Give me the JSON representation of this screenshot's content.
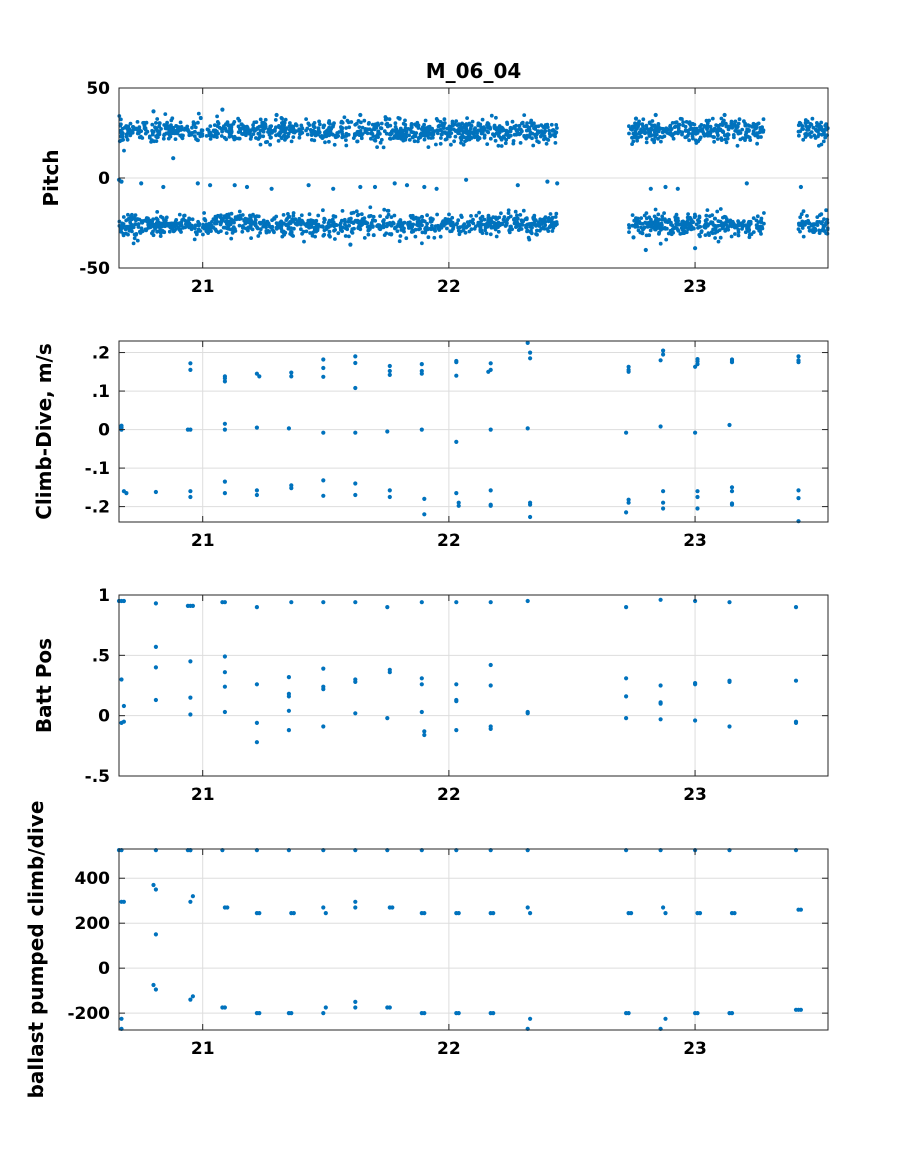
{
  "figure": {
    "title": "M_06_04",
    "marker_color": "#0072BD",
    "grid_color": "#dddddd"
  },
  "chart_data": [
    {
      "type": "scatter",
      "title": "M_06_04",
      "xlabel": "",
      "ylabel": "Pitch",
      "xlim": [
        20.66,
        23.54
      ],
      "ylim": [
        -50,
        50
      ],
      "xticks": [
        21,
        22,
        23
      ],
      "yticks": [
        -50,
        0,
        50
      ],
      "grid": true,
      "dense_bands": [
        {
          "center": 26,
          "spread": 5,
          "segments": [
            [
              20.66,
              22.44
            ],
            [
              22.73,
              23.28
            ],
            [
              23.42,
              23.54
            ]
          ]
        },
        {
          "center": -26,
          "spread": 5,
          "segments": [
            [
              20.66,
              22.44
            ],
            [
              22.73,
              23.28
            ],
            [
              23.42,
              23.54
            ]
          ]
        }
      ],
      "points": [
        [
          20.66,
          -1
        ],
        [
          20.67,
          -2
        ],
        [
          20.75,
          -3
        ],
        [
          20.84,
          -5
        ],
        [
          20.98,
          -3
        ],
        [
          21.03,
          -4
        ],
        [
          21.08,
          38
        ],
        [
          21.13,
          -4
        ],
        [
          21.18,
          -5
        ],
        [
          21.28,
          -6
        ],
        [
          21.43,
          -4
        ],
        [
          21.53,
          -6
        ],
        [
          21.64,
          -5
        ],
        [
          21.64,
          35
        ],
        [
          21.7,
          -5
        ],
        [
          21.78,
          -3
        ],
        [
          21.83,
          -4
        ],
        [
          21.9,
          -5
        ],
        [
          21.95,
          -6
        ],
        [
          22.07,
          -1
        ],
        [
          22.28,
          -4
        ],
        [
          22.4,
          -2
        ],
        [
          22.44,
          -3
        ],
        [
          20.8,
          37
        ],
        [
          20.88,
          11
        ],
        [
          21.6,
          -37
        ],
        [
          22.75,
          -33
        ],
        [
          22.8,
          -40
        ],
        [
          22.82,
          -6
        ],
        [
          22.88,
          -5
        ],
        [
          22.93,
          -6
        ],
        [
          23.0,
          -39
        ],
        [
          23.21,
          -3
        ],
        [
          23.43,
          -5
        ],
        [
          22.76,
          33
        ],
        [
          22.84,
          35
        ],
        [
          23.12,
          35
        ],
        [
          21.3,
          35
        ],
        [
          21.8,
          33
        ]
      ]
    },
    {
      "type": "scatter",
      "xlabel": "",
      "ylabel": "Climb-Dive, m/s",
      "xlim": [
        20.66,
        23.54
      ],
      "ylim": [
        -0.24,
        0.23
      ],
      "xticks": [
        21,
        22,
        23
      ],
      "yticks": [
        -0.2,
        -0.1,
        0,
        0.1,
        0.2
      ],
      "grid": true,
      "points": [
        [
          20.67,
          0.01
        ],
        [
          20.67,
          0.0
        ],
        [
          20.67,
          0.005
        ],
        [
          20.68,
          -0.16
        ],
        [
          20.69,
          -0.165
        ],
        [
          20.81,
          -0.162
        ],
        [
          20.94,
          0.0
        ],
        [
          20.95,
          0.0
        ],
        [
          20.95,
          0.155
        ],
        [
          20.95,
          0.172
        ],
        [
          20.95,
          -0.16
        ],
        [
          20.95,
          -0.175
        ],
        [
          21.09,
          0.133
        ],
        [
          21.09,
          0.138
        ],
        [
          21.09,
          0.125
        ],
        [
          21.09,
          0.015
        ],
        [
          21.09,
          0.0
        ],
        [
          21.09,
          -0.135
        ],
        [
          21.09,
          -0.165
        ],
        [
          21.22,
          0.145
        ],
        [
          21.23,
          0.138
        ],
        [
          21.22,
          0.005
        ],
        [
          21.22,
          -0.158
        ],
        [
          21.22,
          -0.17
        ],
        [
          21.36,
          0.148
        ],
        [
          21.36,
          0.138
        ],
        [
          21.35,
          0.003
        ],
        [
          21.36,
          -0.145
        ],
        [
          21.36,
          -0.152
        ],
        [
          21.49,
          0.182
        ],
        [
          21.49,
          0.16
        ],
        [
          21.49,
          0.137
        ],
        [
          21.49,
          -0.008
        ],
        [
          21.49,
          -0.132
        ],
        [
          21.49,
          -0.172
        ],
        [
          21.62,
          0.19
        ],
        [
          21.62,
          0.173
        ],
        [
          21.62,
          0.108
        ],
        [
          21.62,
          -0.008
        ],
        [
          21.62,
          -0.14
        ],
        [
          21.62,
          -0.17
        ],
        [
          21.76,
          0.165
        ],
        [
          21.76,
          0.152
        ],
        [
          21.76,
          0.142
        ],
        [
          21.75,
          -0.005
        ],
        [
          21.76,
          -0.158
        ],
        [
          21.76,
          -0.175
        ],
        [
          21.89,
          0.17
        ],
        [
          21.89,
          0.152
        ],
        [
          21.89,
          0.145
        ],
        [
          21.89,
          0.0
        ],
        [
          21.9,
          -0.18
        ],
        [
          21.9,
          -0.22
        ],
        [
          22.03,
          0.178
        ],
        [
          22.03,
          0.175
        ],
        [
          22.03,
          0.14
        ],
        [
          22.03,
          -0.032
        ],
        [
          22.03,
          -0.165
        ],
        [
          22.04,
          -0.19
        ],
        [
          22.04,
          -0.198
        ],
        [
          22.17,
          0.172
        ],
        [
          22.17,
          0.155
        ],
        [
          22.16,
          0.15
        ],
        [
          22.17,
          0.0
        ],
        [
          22.17,
          -0.158
        ],
        [
          22.17,
          -0.195
        ],
        [
          22.17,
          -0.198
        ],
        [
          22.32,
          0.225
        ],
        [
          22.33,
          0.2
        ],
        [
          22.33,
          0.185
        ],
        [
          22.32,
          0.003
        ],
        [
          22.33,
          -0.19
        ],
        [
          22.33,
          -0.195
        ],
        [
          22.33,
          -0.227
        ],
        [
          22.73,
          0.163
        ],
        [
          22.73,
          0.155
        ],
        [
          22.73,
          0.15
        ],
        [
          22.72,
          -0.008
        ],
        [
          22.73,
          -0.182
        ],
        [
          22.73,
          -0.19
        ],
        [
          22.72,
          -0.215
        ],
        [
          22.87,
          0.205
        ],
        [
          22.87,
          0.195
        ],
        [
          22.86,
          0.18
        ],
        [
          22.86,
          0.008
        ],
        [
          22.87,
          -0.16
        ],
        [
          22.87,
          -0.19
        ],
        [
          22.87,
          -0.205
        ],
        [
          23.01,
          0.183
        ],
        [
          23.01,
          0.177
        ],
        [
          23.01,
          0.17
        ],
        [
          23.0,
          0.163
        ],
        [
          23.0,
          -0.008
        ],
        [
          23.01,
          -0.16
        ],
        [
          23.01,
          -0.175
        ],
        [
          23.01,
          -0.205
        ],
        [
          23.15,
          0.182
        ],
        [
          23.15,
          0.178
        ],
        [
          23.15,
          0.175
        ],
        [
          23.14,
          0.012
        ],
        [
          23.15,
          -0.15
        ],
        [
          23.15,
          -0.16
        ],
        [
          23.15,
          -0.192
        ],
        [
          23.15,
          -0.195
        ],
        [
          23.42,
          0.19
        ],
        [
          23.42,
          0.18
        ],
        [
          23.42,
          0.175
        ],
        [
          23.42,
          -0.158
        ],
        [
          23.42,
          -0.178
        ],
        [
          23.42,
          -0.238
        ]
      ]
    },
    {
      "type": "scatter",
      "xlabel": "",
      "ylabel": "Batt Pos",
      "xlim": [
        20.66,
        23.54
      ],
      "ylim": [
        -0.5,
        1
      ],
      "xticks": [
        21,
        22,
        23
      ],
      "yticks": [
        -0.5,
        0,
        0.5,
        1
      ],
      "grid": true,
      "points": [
        [
          20.66,
          0.95
        ],
        [
          20.67,
          0.95
        ],
        [
          20.68,
          0.95
        ],
        [
          20.67,
          0.3
        ],
        [
          20.68,
          0.08
        ],
        [
          20.67,
          -0.06
        ],
        [
          20.68,
          -0.05
        ],
        [
          20.81,
          0.93
        ],
        [
          20.81,
          0.57
        ],
        [
          20.81,
          0.4
        ],
        [
          20.81,
          0.13
        ],
        [
          20.94,
          0.91
        ],
        [
          20.95,
          0.91
        ],
        [
          20.96,
          0.91
        ],
        [
          20.95,
          0.45
        ],
        [
          20.95,
          0.15
        ],
        [
          20.95,
          0.01
        ],
        [
          21.08,
          0.94
        ],
        [
          21.09,
          0.94
        ],
        [
          21.09,
          0.49
        ],
        [
          21.09,
          0.36
        ],
        [
          21.09,
          0.24
        ],
        [
          21.09,
          0.03
        ],
        [
          21.22,
          0.9
        ],
        [
          21.22,
          0.26
        ],
        [
          21.22,
          -0.06
        ],
        [
          21.22,
          -0.22
        ],
        [
          21.36,
          0.94
        ],
        [
          21.35,
          0.32
        ],
        [
          21.35,
          0.18
        ],
        [
          21.35,
          0.16
        ],
        [
          21.35,
          0.04
        ],
        [
          21.35,
          -0.12
        ],
        [
          21.49,
          0.94
        ],
        [
          21.49,
          0.39
        ],
        [
          21.49,
          0.24
        ],
        [
          21.49,
          0.22
        ],
        [
          21.49,
          -0.09
        ],
        [
          21.62,
          0.94
        ],
        [
          21.62,
          0.3
        ],
        [
          21.62,
          0.28
        ],
        [
          21.62,
          0.02
        ],
        [
          21.75,
          0.9
        ],
        [
          21.76,
          0.38
        ],
        [
          21.76,
          0.36
        ],
        [
          21.75,
          -0.02
        ],
        [
          21.89,
          0.94
        ],
        [
          21.89,
          0.31
        ],
        [
          21.89,
          0.26
        ],
        [
          21.89,
          0.03
        ],
        [
          21.9,
          -0.13
        ],
        [
          21.9,
          -0.16
        ],
        [
          22.03,
          0.94
        ],
        [
          22.03,
          0.26
        ],
        [
          22.03,
          0.13
        ],
        [
          22.03,
          0.12
        ],
        [
          22.03,
          -0.12
        ],
        [
          22.17,
          0.94
        ],
        [
          22.17,
          0.42
        ],
        [
          22.17,
          0.25
        ],
        [
          22.17,
          -0.09
        ],
        [
          22.17,
          -0.11
        ],
        [
          22.32,
          0.95
        ],
        [
          22.32,
          0.03
        ],
        [
          22.32,
          0.02
        ],
        [
          22.72,
          0.9
        ],
        [
          22.72,
          0.31
        ],
        [
          22.72,
          0.16
        ],
        [
          22.72,
          -0.02
        ],
        [
          22.86,
          0.96
        ],
        [
          22.86,
          0.25
        ],
        [
          22.86,
          0.11
        ],
        [
          22.86,
          0.1
        ],
        [
          22.86,
          -0.03
        ],
        [
          23.0,
          0.95
        ],
        [
          23.0,
          0.27
        ],
        [
          23.0,
          0.26
        ],
        [
          23.0,
          -0.04
        ],
        [
          23.14,
          0.94
        ],
        [
          23.14,
          0.29
        ],
        [
          23.14,
          0.28
        ],
        [
          23.14,
          -0.09
        ],
        [
          23.41,
          0.9
        ],
        [
          23.41,
          0.29
        ],
        [
          23.41,
          -0.05
        ],
        [
          23.41,
          -0.06
        ]
      ]
    },
    {
      "type": "scatter",
      "xlabel": "",
      "ylabel": "ballast pumped climb/dive",
      "xlim": [
        20.66,
        23.54
      ],
      "ylim": [
        -275,
        530
      ],
      "xticks": [
        21,
        22,
        23
      ],
      "yticks": [
        -200,
        0,
        200,
        400
      ],
      "grid": true,
      "points": [
        [
          20.66,
          525
        ],
        [
          20.67,
          525
        ],
        [
          20.68,
          295
        ],
        [
          20.67,
          295
        ],
        [
          20.67,
          -225
        ],
        [
          20.67,
          -270
        ],
        [
          20.81,
          525
        ],
        [
          20.8,
          370
        ],
        [
          20.81,
          350
        ],
        [
          20.81,
          150
        ],
        [
          20.8,
          -75
        ],
        [
          20.81,
          -95
        ],
        [
          20.94,
          525
        ],
        [
          20.95,
          525
        ],
        [
          20.95,
          525
        ],
        [
          20.96,
          320
        ],
        [
          20.95,
          295
        ],
        [
          20.96,
          -125
        ],
        [
          20.95,
          -140
        ],
        [
          21.08,
          525
        ],
        [
          21.09,
          270
        ],
        [
          21.1,
          270
        ],
        [
          21.08,
          -175
        ],
        [
          21.09,
          -175
        ],
        [
          21.22,
          525
        ],
        [
          21.22,
          245
        ],
        [
          21.23,
          245
        ],
        [
          21.22,
          -200
        ],
        [
          21.23,
          -200
        ],
        [
          21.35,
          525
        ],
        [
          21.36,
          245
        ],
        [
          21.37,
          245
        ],
        [
          21.35,
          -200
        ],
        [
          21.36,
          -200
        ],
        [
          21.49,
          525
        ],
        [
          21.49,
          270
        ],
        [
          21.5,
          245
        ],
        [
          21.49,
          -200
        ],
        [
          21.5,
          -175
        ],
        [
          21.62,
          525
        ],
        [
          21.62,
          295
        ],
        [
          21.62,
          270
        ],
        [
          21.62,
          -150
        ],
        [
          21.62,
          -175
        ],
        [
          21.75,
          525
        ],
        [
          21.76,
          270
        ],
        [
          21.77,
          270
        ],
        [
          21.75,
          -175
        ],
        [
          21.76,
          -175
        ],
        [
          21.89,
          525
        ],
        [
          21.89,
          245
        ],
        [
          21.9,
          245
        ],
        [
          21.89,
          -200
        ],
        [
          21.9,
          -200
        ],
        [
          22.03,
          525
        ],
        [
          22.03,
          245
        ],
        [
          22.04,
          245
        ],
        [
          22.03,
          -200
        ],
        [
          22.04,
          -200
        ],
        [
          22.17,
          525
        ],
        [
          22.17,
          245
        ],
        [
          22.18,
          245
        ],
        [
          22.17,
          -200
        ],
        [
          22.18,
          -200
        ],
        [
          22.32,
          525
        ],
        [
          22.32,
          270
        ],
        [
          22.33,
          245
        ],
        [
          22.32,
          -270
        ],
        [
          22.33,
          -225
        ],
        [
          22.72,
          525
        ],
        [
          22.73,
          245
        ],
        [
          22.74,
          245
        ],
        [
          22.72,
          -200
        ],
        [
          22.73,
          -200
        ],
        [
          22.86,
          525
        ],
        [
          22.87,
          270
        ],
        [
          22.88,
          245
        ],
        [
          22.86,
          -270
        ],
        [
          22.88,
          -225
        ],
        [
          23.0,
          525
        ],
        [
          23.01,
          245
        ],
        [
          23.02,
          245
        ],
        [
          23.0,
          -200
        ],
        [
          23.01,
          -200
        ],
        [
          23.14,
          525
        ],
        [
          23.15,
          245
        ],
        [
          23.16,
          245
        ],
        [
          23.14,
          -200
        ],
        [
          23.15,
          -200
        ],
        [
          23.41,
          525
        ],
        [
          23.42,
          260
        ],
        [
          23.43,
          260
        ],
        [
          23.41,
          -185
        ],
        [
          23.42,
          -185
        ],
        [
          23.43,
          -185
        ]
      ]
    }
  ]
}
